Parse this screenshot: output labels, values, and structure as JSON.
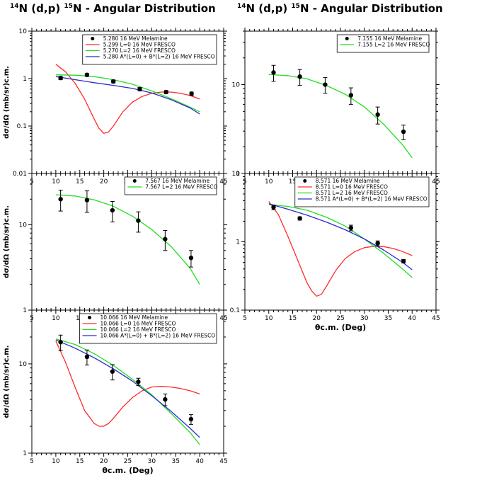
{
  "titles": {
    "left": {
      "sup1": "14",
      "base1": "N (d,p) ",
      "sup2": "15",
      "base2": "N - Angular Distribution"
    },
    "right": {
      "sup1": "14",
      "base1": "N (d,p) ",
      "sup2": "15",
      "base2": "N - Angular Distribution"
    }
  },
  "colors": {
    "data": "#000000",
    "l0": "#ff2a2a",
    "l2": "#22dd22",
    "mix": "#2a2acc",
    "frame": "#000000"
  },
  "chart_data": [
    {
      "type": "scatter",
      "panel": "top-left",
      "xlim": [
        5,
        45
      ],
      "ylim": [
        0.01,
        10
      ],
      "yscale": "log",
      "xticks": [
        "5",
        "10",
        "15",
        "20",
        "25",
        "30",
        "35",
        "40",
        "45"
      ],
      "yticks": [
        "0.01",
        "0.1",
        "1",
        "10"
      ],
      "xlabel": "",
      "ylabel": "dσ/dΩ (mb/sr)c.m.",
      "legend_position": "top-right",
      "series": [
        {
          "name": "5.280 16 MeV Melamine",
          "kind": "points",
          "color": "data",
          "x": [
            11,
            16.5,
            22,
            27.5,
            33,
            38.3
          ],
          "y": [
            1.03,
            1.2,
            0.87,
            0.6,
            0.52,
            0.48
          ],
          "yerr": [
            0.08,
            0.08,
            0.06,
            0.05,
            0.04,
            0.04
          ]
        },
        {
          "name": "5.299 L=0 16 MeV FRESCO",
          "kind": "line",
          "color": "l0",
          "x": [
            10,
            12,
            14,
            16,
            18,
            19,
            20,
            21,
            22,
            24,
            26,
            28,
            30,
            32,
            34,
            36,
            38,
            40
          ],
          "y": [
            2.0,
            1.4,
            0.8,
            0.37,
            0.14,
            0.09,
            0.07,
            0.075,
            0.1,
            0.2,
            0.32,
            0.42,
            0.49,
            0.52,
            0.52,
            0.49,
            0.44,
            0.37
          ]
        },
        {
          "name": "5.270 L=2 16 MeV FRESCO",
          "kind": "line",
          "color": "l2",
          "x": [
            10,
            14,
            18,
            22,
            26,
            30,
            34,
            38,
            40
          ],
          "y": [
            1.2,
            1.18,
            1.1,
            0.95,
            0.76,
            0.55,
            0.38,
            0.25,
            0.2
          ]
        },
        {
          "name": "5.280 A*(L=0) + B*(L=2) 16 MeV FRESCO",
          "kind": "line",
          "color": "mix",
          "x": [
            10,
            14,
            18,
            22,
            26,
            30,
            34,
            38,
            40
          ],
          "y": [
            1.1,
            0.95,
            0.82,
            0.72,
            0.62,
            0.5,
            0.36,
            0.24,
            0.18
          ]
        }
      ]
    },
    {
      "type": "scatter",
      "panel": "top-right",
      "xlim": [
        5,
        45
      ],
      "ylim": [
        1,
        40
      ],
      "yscale": "log",
      "xticks": [
        "5",
        "10",
        "15",
        "20",
        "25",
        "30",
        "35",
        "40",
        "45"
      ],
      "yticks": [
        "1",
        "10"
      ],
      "xlabel": "",
      "ylabel": "",
      "legend_position": "top-right",
      "series": [
        {
          "name": "7.155 16 MeV Melamine",
          "kind": "points",
          "color": "data",
          "x": [
            11,
            16.5,
            21.8,
            27.2,
            32.8,
            38.2
          ],
          "y": [
            13.7,
            12.3,
            10.0,
            7.6,
            4.6,
            2.95
          ],
          "yerr": [
            2.8,
            2.5,
            2.0,
            1.6,
            1.0,
            0.55
          ]
        },
        {
          "name": "7.155 L=2 16 MeV FRESCO",
          "kind": "line",
          "color": "l2",
          "x": [
            10,
            14,
            18,
            22,
            26,
            30,
            34,
            38,
            40
          ],
          "y": [
            13.0,
            12.6,
            11.6,
            9.8,
            7.8,
            5.6,
            3.6,
            2.1,
            1.5
          ]
        }
      ]
    },
    {
      "type": "scatter",
      "panel": "middle-left",
      "xlim": [
        5,
        45
      ],
      "ylim": [
        1,
        40
      ],
      "yscale": "log",
      "xticks": [
        "5",
        "10",
        "15",
        "20",
        "25",
        "30",
        "35",
        "40",
        "45"
      ],
      "yticks": [
        "1",
        "10"
      ],
      "xlabel": "",
      "ylabel": "dσ/dΩ (mb/sr)c.m.",
      "legend_position": "top-right",
      "series": [
        {
          "name": "7.567 16 MeV Melamine",
          "kind": "points",
          "color": "data",
          "x": [
            11,
            16.5,
            21.8,
            27.2,
            32.8,
            38.2
          ],
          "y": [
            20.0,
            19.5,
            14.8,
            11.2,
            6.8,
            4.1
          ],
          "yerr": [
            5.5,
            5.5,
            4.0,
            3.0,
            1.8,
            0.9
          ]
        },
        {
          "name": "7.567 L=2 16 MeV FRESCO",
          "kind": "line",
          "color": "l2",
          "x": [
            10,
            14,
            18,
            22,
            26,
            30,
            34,
            38,
            40
          ],
          "y": [
            22.5,
            21.8,
            19.6,
            16.5,
            12.6,
            8.8,
            5.6,
            3.1,
            2.0
          ]
        }
      ]
    },
    {
      "type": "scatter",
      "panel": "middle-right",
      "xlim": [
        5,
        45
      ],
      "ylim": [
        0.1,
        10
      ],
      "yscale": "log",
      "xticks": [
        "5",
        "10",
        "15",
        "20",
        "25",
        "30",
        "35",
        "40",
        "45"
      ],
      "yticks": [
        "0.1",
        "1",
        "10"
      ],
      "xlabel": "θc.m. (Deg)",
      "ylabel": "",
      "legend_position": "top-right",
      "series": [
        {
          "name": "8.571 16 MeV Melamine",
          "kind": "points",
          "color": "data",
          "x": [
            11,
            16.5,
            27.2,
            32.8,
            38.2
          ],
          "y": [
            3.2,
            2.2,
            1.6,
            0.95,
            0.52
          ],
          "yerr": [
            0.25,
            0.12,
            0.15,
            0.08,
            0.03
          ]
        },
        {
          "name": "8.571 L=0 16 MeV FRESCO",
          "kind": "line",
          "color": "l0",
          "x": [
            10,
            12,
            14,
            16,
            18,
            19,
            20,
            21,
            22,
            24,
            26,
            28,
            30,
            32,
            34,
            36,
            38,
            40
          ],
          "y": [
            3.9,
            2.5,
            1.2,
            0.55,
            0.25,
            0.19,
            0.16,
            0.17,
            0.22,
            0.38,
            0.57,
            0.72,
            0.82,
            0.86,
            0.85,
            0.8,
            0.72,
            0.63
          ]
        },
        {
          "name": "8.571 L=2 16 MeV FRESCO",
          "kind": "line",
          "color": "l2",
          "x": [
            10,
            14,
            18,
            22,
            26,
            30,
            34,
            38,
            40
          ],
          "y": [
            3.5,
            3.3,
            2.9,
            2.3,
            1.7,
            1.1,
            0.68,
            0.4,
            0.3
          ]
        },
        {
          "name": "8.571 A*(L=0) + B*(L=2) 16 MeV FRESCO",
          "kind": "line",
          "color": "mix",
          "x": [
            10,
            14,
            18,
            22,
            26,
            30,
            34,
            38,
            40
          ],
          "y": [
            3.6,
            3.0,
            2.45,
            1.95,
            1.5,
            1.1,
            0.76,
            0.5,
            0.39
          ]
        }
      ]
    },
    {
      "type": "scatter",
      "panel": "bottom-left",
      "xlim": [
        5,
        45
      ],
      "ylim": [
        1,
        40
      ],
      "yscale": "log",
      "xticks": [
        "5",
        "10",
        "15",
        "20",
        "25",
        "30",
        "35",
        "40",
        "45"
      ],
      "yticks": [
        "1",
        "10"
      ],
      "xlabel": "θc.m. (Deg)",
      "ylabel": "dσ/dΩ (mb/sr)c.m.",
      "legend_position": "top-right",
      "series": [
        {
          "name": "10.066 16 MeV Melamine",
          "kind": "points",
          "color": "data",
          "x": [
            11,
            16.5,
            21.8,
            27.2,
            32.8,
            38.2
          ],
          "y": [
            17.5,
            12.0,
            8.2,
            6.3,
            4.0,
            2.4
          ],
          "yerr": [
            3.5,
            2.3,
            1.6,
            0.6,
            0.6,
            0.3
          ]
        },
        {
          "name": "10.066 L=0 16 MeV FRESCO",
          "kind": "line",
          "color": "l0",
          "x": [
            10,
            12,
            14,
            16,
            18,
            19,
            20,
            21,
            22,
            24,
            26,
            28,
            30,
            32,
            34,
            36,
            38,
            40
          ],
          "y": [
            18.0,
            10.5,
            5.5,
            3.0,
            2.15,
            2.0,
            2.0,
            2.15,
            2.45,
            3.3,
            4.2,
            5.0,
            5.5,
            5.6,
            5.5,
            5.3,
            5.0,
            4.6
          ]
        },
        {
          "name": "10.066 L=2 16 MeV FRESCO",
          "kind": "line",
          "color": "l2",
          "x": [
            10,
            14,
            18,
            22,
            26,
            30,
            34,
            38,
            40
          ],
          "y": [
            19.0,
            16.5,
            13.0,
            9.6,
            6.7,
            4.5,
            2.8,
            1.7,
            1.25
          ]
        },
        {
          "name": "10.066 A*(L=0) + B*(L=2) 16 MeV FRESCO",
          "kind": "line",
          "color": "mix",
          "x": [
            10,
            14,
            18,
            22,
            26,
            30,
            34,
            38,
            40
          ],
          "y": [
            18.5,
            15.0,
            11.7,
            8.8,
            6.4,
            4.4,
            2.95,
            1.9,
            1.5
          ]
        }
      ]
    }
  ]
}
